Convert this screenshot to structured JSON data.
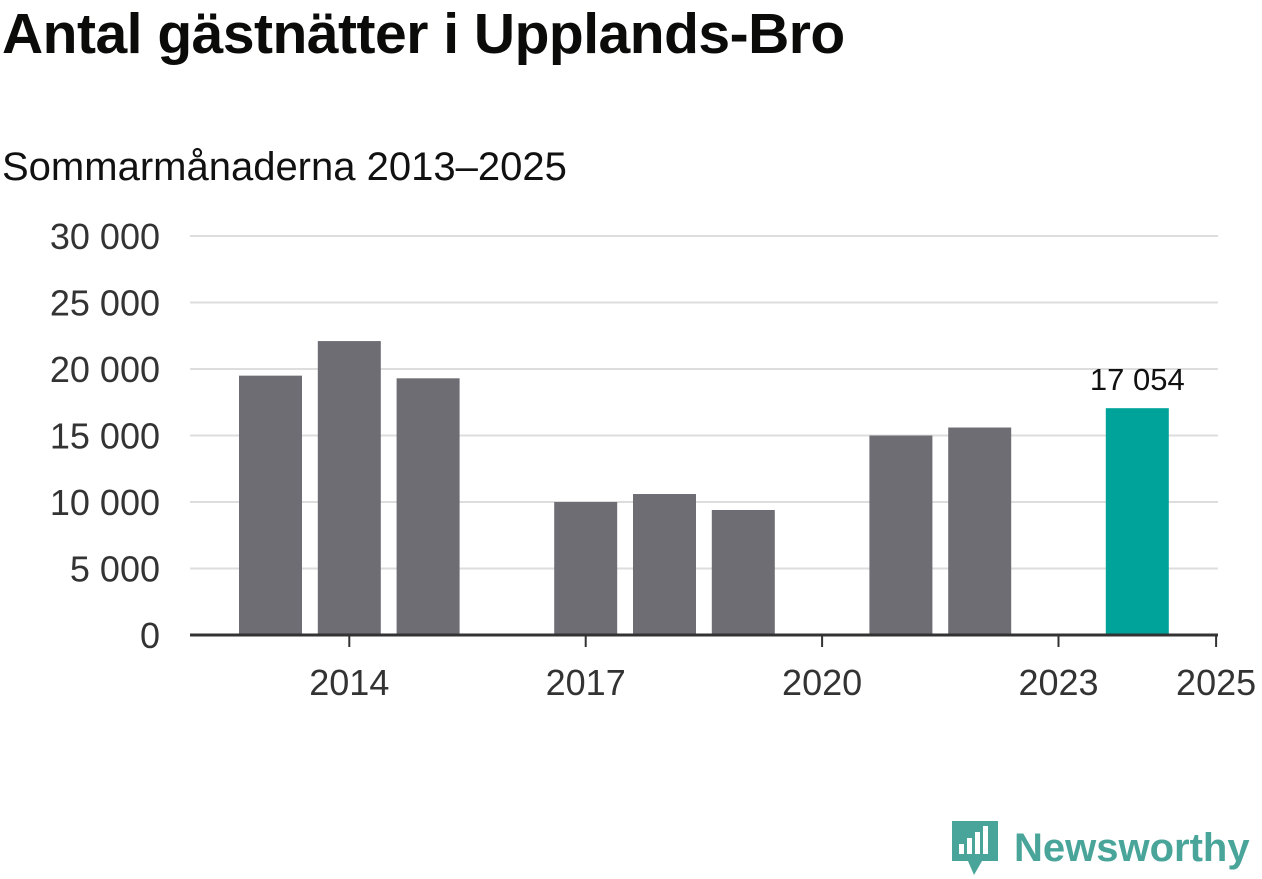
{
  "title": "Antal gästnätter i Upplands-Bro",
  "subtitle": "Sommarmånaderna 2013–2025",
  "brand": {
    "name": "Newsworthy",
    "icon": "newsworthy-logo-icon",
    "color": "#49a59a"
  },
  "colors": {
    "bar": "#6e6d74",
    "highlight": "#00a39a",
    "grid": "#dddddd",
    "axis": "#333333"
  },
  "chart_data": {
    "type": "bar",
    "title": "Antal gästnätter i Upplands-Bro",
    "subtitle": "Sommarmånaderna 2013–2025",
    "xlabel": "",
    "ylabel": "",
    "categories": [
      "2013",
      "2014",
      "2015",
      "2016",
      "2017",
      "2018",
      "2019",
      "2020",
      "2021",
      "2022",
      "2023",
      "2024",
      "2025"
    ],
    "values": [
      19500,
      22100,
      19300,
      null,
      10000,
      10600,
      9400,
      null,
      15000,
      15600,
      null,
      17054,
      null
    ],
    "ylim": [
      0,
      30000
    ],
    "yticks": [
      0,
      5000,
      10000,
      15000,
      20000,
      25000,
      30000
    ],
    "ytick_labels": [
      "0",
      "5 000",
      "10 000",
      "15 000",
      "20 000",
      "25 000",
      "30 000"
    ],
    "xtick_labels": [
      "2014",
      "2017",
      "2020",
      "2023",
      "2025"
    ],
    "xtick_positions": [
      1,
      4,
      7,
      10,
      12
    ],
    "highlight_index": 11,
    "data_labels": [
      {
        "index": 11,
        "text": "17 054"
      }
    ],
    "grid": true,
    "legend": "none"
  }
}
